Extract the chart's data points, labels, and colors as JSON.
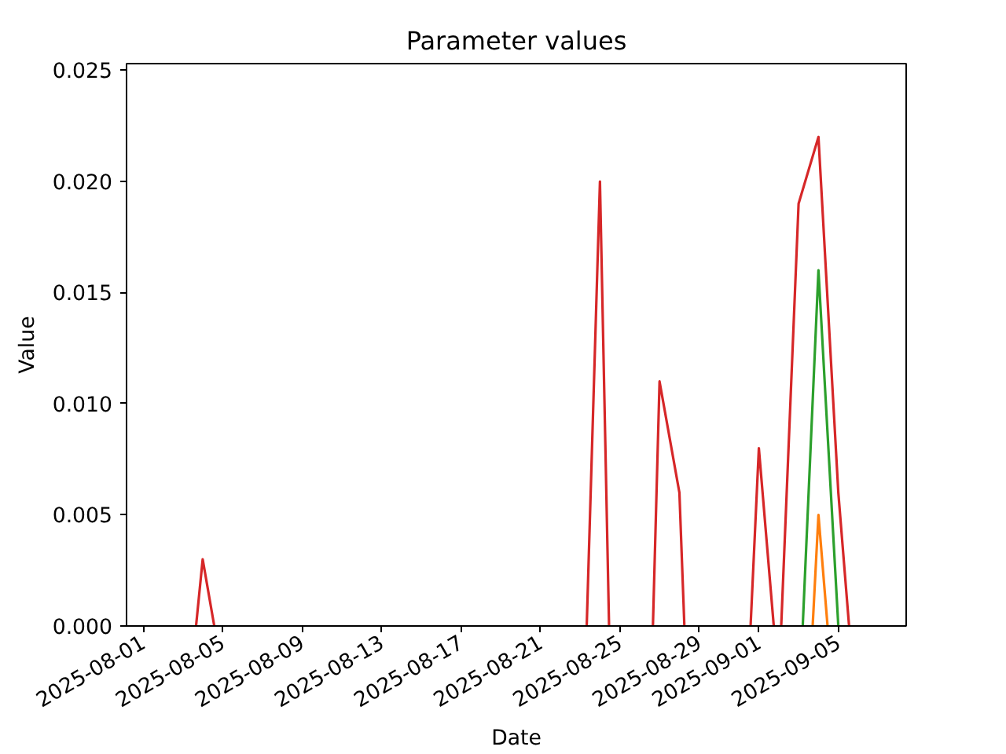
{
  "chart_data": {
    "type": "line",
    "title": "Parameter values",
    "xlabel": "Date",
    "ylabel": "Value",
    "xlim": [
      "2025-07-31T04:00",
      "2025-09-08T10:00"
    ],
    "ylim": [
      0,
      0.0253
    ],
    "xticks": [
      "2025-08-01",
      "2025-08-05",
      "2025-08-09",
      "2025-08-13",
      "2025-08-17",
      "2025-08-21",
      "2025-08-25",
      "2025-08-29",
      "2025-09-01",
      "2025-09-05"
    ],
    "yticks": [
      {
        "value": 0,
        "label": "0.000"
      },
      {
        "value": 0.005,
        "label": "0.005"
      },
      {
        "value": 0.01,
        "label": "0.010"
      },
      {
        "value": 0.015,
        "label": "0.015"
      },
      {
        "value": 0.02,
        "label": "0.020"
      },
      {
        "value": 0.025,
        "label": "0.025"
      }
    ],
    "grid": false,
    "marker": "none",
    "line_style": "solid",
    "series": [
      {
        "color": "#d62728",
        "x": [
          "2025-08-03T16:00",
          "2025-08-04",
          "2025-08-04T14:00",
          "2025-08-10",
          "2025-08-23T08:00",
          "2025-08-24",
          "2025-08-24T11:00",
          "2025-08-25",
          "2025-08-26T16:00",
          "2025-08-27",
          "2025-08-28",
          "2025-08-28T06:00",
          "2025-08-30",
          "2025-08-31T14:00",
          "2025-09-01",
          "2025-09-01T18:00",
          "2025-09-02",
          "2025-09-02T03:00",
          "2025-09-03",
          "2025-09-04",
          "2025-09-05",
          "2025-09-05T13:00"
        ],
        "values": [
          0,
          0.003,
          0,
          null,
          0,
          0.02,
          0,
          null,
          0,
          0.011,
          0.006,
          0,
          null,
          0,
          0.008,
          0,
          null,
          0,
          0.019,
          0.022,
          0.006,
          0
        ]
      },
      {
        "color": "#2ca02c",
        "x": [
          "2025-09-03T05:00",
          "2025-09-04",
          "2025-09-05"
        ],
        "values": [
          0,
          0.016,
          0
        ]
      },
      {
        "color": "#ff7f0e",
        "x": [
          "2025-09-03T17:00",
          "2025-09-04",
          "2025-09-04T11:00"
        ],
        "values": [
          0,
          0.005,
          0
        ]
      }
    ]
  }
}
